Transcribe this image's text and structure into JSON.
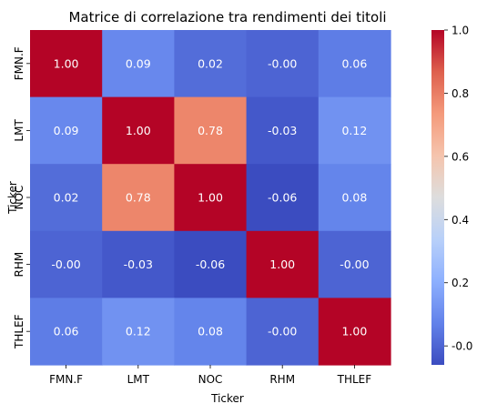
{
  "chart_data": {
    "type": "heatmap",
    "title": "Matrice di correlazione tra rendimenti dei titoli",
    "xlabel": "Ticker",
    "ylabel": "Ticker",
    "x_categories": [
      "FMN.F",
      "LMT",
      "NOC",
      "RHM",
      "THLEF"
    ],
    "y_categories": [
      "FMN.F",
      "LMT",
      "NOC",
      "RHM",
      "THLEF"
    ],
    "values": [
      [
        1.0,
        0.09,
        0.02,
        -0.0,
        0.06
      ],
      [
        0.09,
        1.0,
        0.78,
        -0.03,
        0.12
      ],
      [
        0.02,
        0.78,
        1.0,
        -0.06,
        0.08
      ],
      [
        -0.0,
        -0.03,
        -0.06,
        1.0,
        -0.0
      ],
      [
        0.06,
        0.12,
        0.08,
        -0.0,
        1.0
      ]
    ],
    "value_labels": [
      [
        "1.00",
        "0.09",
        "0.02",
        "-0.00",
        "0.06"
      ],
      [
        "0.09",
        "1.00",
        "0.78",
        "-0.03",
        "0.12"
      ],
      [
        "0.02",
        "0.78",
        "1.00",
        "-0.06",
        "0.08"
      ],
      [
        "-0.00",
        "-0.03",
        "-0.06",
        "1.00",
        "-0.00"
      ],
      [
        "0.06",
        "0.12",
        "0.08",
        "-0.00",
        "1.00"
      ]
    ],
    "colormap": "coolwarm",
    "vmin": -0.06,
    "vmax": 1.0,
    "colorbar_ticks": [
      "-0.0",
      "0.2",
      "0.4",
      "0.6",
      "0.8",
      "1.0"
    ],
    "colorbar_tick_values": [
      0.0,
      0.2,
      0.4,
      0.6,
      0.8,
      1.0
    ],
    "annotation_color": "#ffffff",
    "grid": false
  }
}
